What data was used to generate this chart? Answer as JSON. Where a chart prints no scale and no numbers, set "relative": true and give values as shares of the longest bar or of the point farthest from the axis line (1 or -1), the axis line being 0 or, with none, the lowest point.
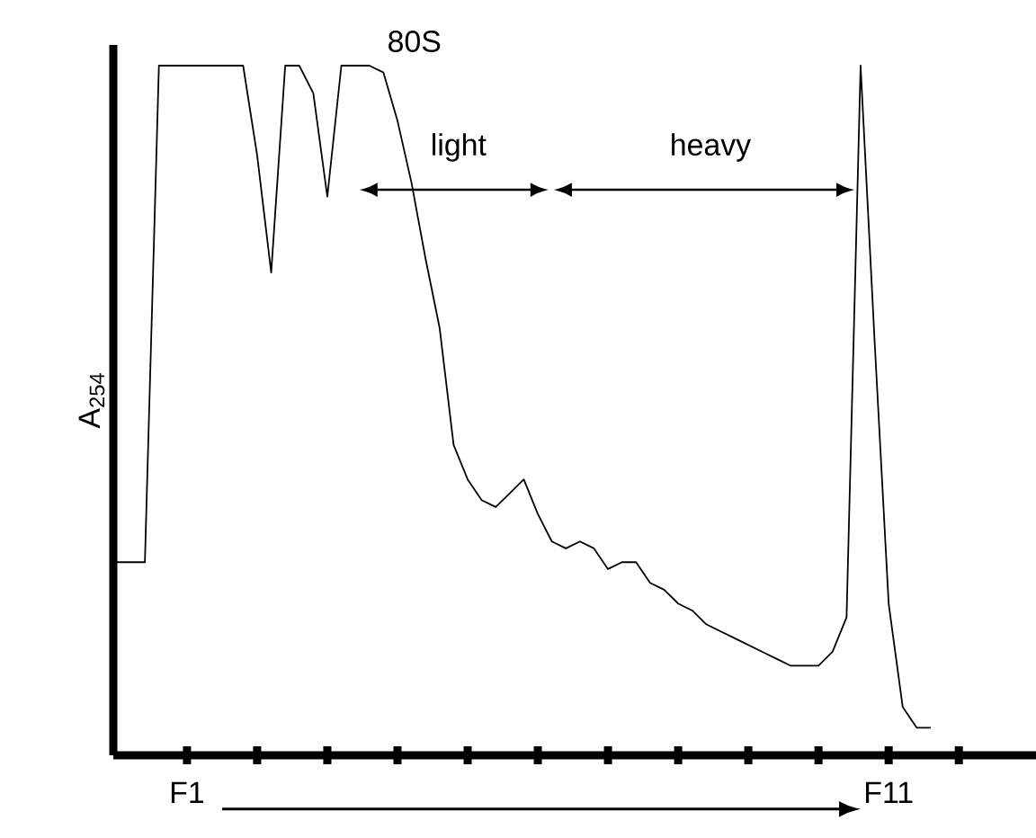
{
  "chart_data": {
    "type": "line",
    "ylabel": "A$_{254}$",
    "relative": true,
    "annotations": [
      "80S",
      "light",
      "heavy"
    ],
    "categories": [
      null,
      null,
      null,
      null,
      null,
      "F1",
      null,
      null,
      null,
      null,
      null,
      null,
      null,
      null,
      null,
      null,
      null,
      null,
      null,
      null,
      null,
      null,
      null,
      null,
      null,
      null,
      null,
      null,
      null,
      null,
      null,
      null,
      null,
      null,
      null,
      null,
      null,
      null,
      null,
      null,
      null,
      null,
      null,
      null,
      null,
      null,
      null,
      null,
      null,
      null,
      null,
      null,
      null,
      null,
      null,
      "F11",
      null,
      null,
      null,
      null,
      null
    ],
    "series": [
      {
        "color": "#000000",
        "values": [
          0.28,
          0.28,
          0.28,
          1.0,
          1.0,
          1.0,
          1.0,
          1.0,
          1.0,
          1.0,
          0.87,
          0.7,
          1.0,
          1.0,
          0.96,
          0.81,
          1.0,
          1.0,
          1.0,
          0.99,
          0.92,
          0.83,
          0.72,
          0.62,
          0.45,
          0.4,
          0.37,
          0.36,
          0.38,
          0.4,
          0.35,
          0.31,
          0.3,
          0.31,
          0.3,
          0.27,
          0.28,
          0.28,
          0.25,
          0.24,
          0.22,
          0.21,
          0.19,
          0.18,
          0.17,
          0.16,
          0.15,
          0.14,
          0.13,
          0.13,
          0.13,
          0.15,
          0.2,
          1.0,
          0.6,
          0.22,
          0.07,
          0.04,
          0.04,
          null,
          null
        ]
      }
    ]
  }
}
